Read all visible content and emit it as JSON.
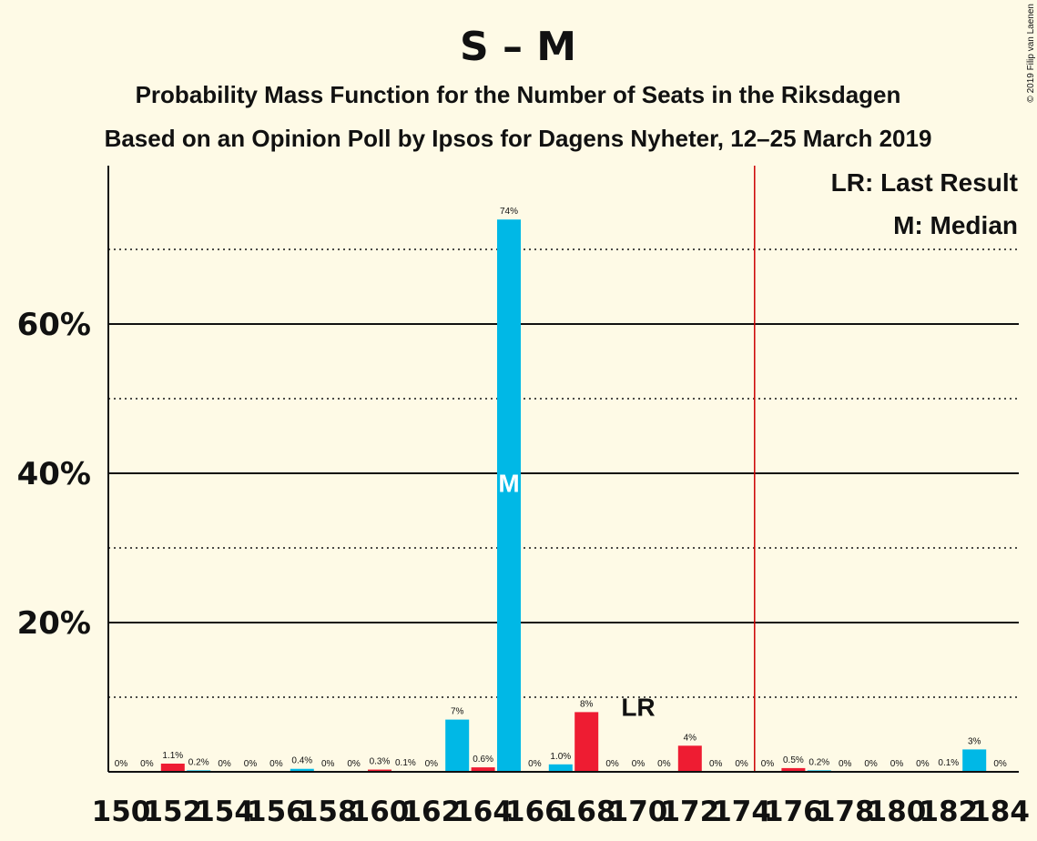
{
  "chart_data": {
    "type": "bar",
    "title": "S – M",
    "subtitle": "Probability Mass Function for the Number of Seats in the Riksdagen",
    "subtitle2": "Based on an Opinion Poll by Ipsos for Dagens Nyheter, 12–25 March 2019",
    "copyright": "© 2019 Filip van Laenen",
    "legend": {
      "lr": "LR: Last Result",
      "m": "M: Median"
    },
    "ylim": [
      0,
      80
    ],
    "y_ticks": [
      {
        "value": 20,
        "label": "20%"
      },
      {
        "value": 40,
        "label": "40%"
      },
      {
        "value": 60,
        "label": "60%"
      }
    ],
    "y_dotted": [
      10,
      30,
      50,
      70
    ],
    "x_tick_labels": [
      "150",
      "152",
      "154",
      "156",
      "158",
      "160",
      "162",
      "164",
      "166",
      "168",
      "170",
      "172",
      "174",
      "176",
      "178",
      "180",
      "182",
      "184"
    ],
    "majority_line": 174.5,
    "last_result": {
      "seat": 170,
      "label": "LR"
    },
    "median": {
      "seat": 165,
      "label": "M"
    },
    "colors": {
      "median_series": "#00b8e6",
      "other_series": "#ee1c32",
      "majority": "#cc0000",
      "background": "#fefae6"
    },
    "bars": [
      {
        "seat": 150,
        "value": 0,
        "label": "0%",
        "color": "#ee1c32"
      },
      {
        "seat": 151,
        "value": 0,
        "label": "0%",
        "color": "#00b8e6"
      },
      {
        "seat": 152,
        "value": 1.1,
        "label": "1.1%",
        "color": "#ee1c32"
      },
      {
        "seat": 153,
        "value": 0.2,
        "label": "0.2%",
        "color": "#00b8e6"
      },
      {
        "seat": 154,
        "value": 0,
        "label": "0%",
        "color": "#ee1c32"
      },
      {
        "seat": 155,
        "value": 0,
        "label": "0%",
        "color": "#00b8e6"
      },
      {
        "seat": 156,
        "value": 0,
        "label": "0%",
        "color": "#ee1c32"
      },
      {
        "seat": 157,
        "value": 0.4,
        "label": "0.4%",
        "color": "#00b8e6"
      },
      {
        "seat": 158,
        "value": 0,
        "label": "0%",
        "color": "#ee1c32"
      },
      {
        "seat": 159,
        "value": 0,
        "label": "0%",
        "color": "#00b8e6"
      },
      {
        "seat": 160,
        "value": 0.3,
        "label": "0.3%",
        "color": "#ee1c32"
      },
      {
        "seat": 161,
        "value": 0.1,
        "label": "0.1%",
        "color": "#00b8e6"
      },
      {
        "seat": 162,
        "value": 0,
        "label": "0%",
        "color": "#ee1c32"
      },
      {
        "seat": 163,
        "value": 7,
        "label": "7%",
        "color": "#00b8e6"
      },
      {
        "seat": 164,
        "value": 0.6,
        "label": "0.6%",
        "color": "#ee1c32"
      },
      {
        "seat": 165,
        "value": 74,
        "label": "74%",
        "color": "#00b8e6"
      },
      {
        "seat": 166,
        "value": 0,
        "label": "0%",
        "color": "#ee1c32"
      },
      {
        "seat": 167,
        "value": 1.0,
        "label": "1.0%",
        "color": "#00b8e6"
      },
      {
        "seat": 168,
        "value": 8,
        "label": "8%",
        "color": "#ee1c32"
      },
      {
        "seat": 169,
        "value": 0,
        "label": "0%",
        "color": "#00b8e6"
      },
      {
        "seat": 170,
        "value": 0,
        "label": "0%",
        "color": "#ee1c32"
      },
      {
        "seat": 171,
        "value": 0,
        "label": "0%",
        "color": "#00b8e6"
      },
      {
        "seat": 172,
        "value": 3.5,
        "label": "4%",
        "color": "#ee1c32"
      },
      {
        "seat": 173,
        "value": 0,
        "label": "0%",
        "color": "#00b8e6"
      },
      {
        "seat": 174,
        "value": 0,
        "label": "0%",
        "color": "#ee1c32"
      },
      {
        "seat": 175,
        "value": 0,
        "label": "0%",
        "color": "#00b8e6"
      },
      {
        "seat": 176,
        "value": 0.5,
        "label": "0.5%",
        "color": "#ee1c32"
      },
      {
        "seat": 177,
        "value": 0.2,
        "label": "0.2%",
        "color": "#00b8e6"
      },
      {
        "seat": 178,
        "value": 0,
        "label": "0%",
        "color": "#ee1c32"
      },
      {
        "seat": 179,
        "value": 0,
        "label": "0%",
        "color": "#00b8e6"
      },
      {
        "seat": 180,
        "value": 0,
        "label": "0%",
        "color": "#ee1c32"
      },
      {
        "seat": 181,
        "value": 0,
        "label": "0%",
        "color": "#00b8e6"
      },
      {
        "seat": 182,
        "value": 0.1,
        "label": "0.1%",
        "color": "#ee1c32"
      },
      {
        "seat": 183,
        "value": 3,
        "label": "3%",
        "color": "#00b8e6"
      },
      {
        "seat": 184,
        "value": 0,
        "label": "0%",
        "color": "#ee1c32"
      }
    ]
  }
}
